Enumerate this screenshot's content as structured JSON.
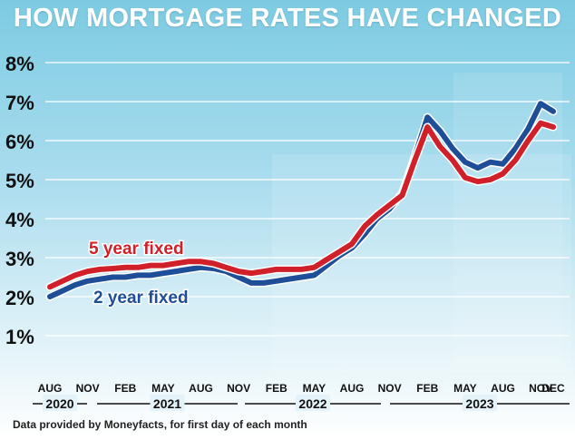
{
  "chart_data": {
    "type": "line",
    "title": "HOW MORTGAGE RATES HAVE CHANGED",
    "source_note": "Data provided by Moneyfacts, for first day of each month",
    "ylim": [
      0,
      8
    ],
    "y_ticks": [
      "1%",
      "2%",
      "3%",
      "4%",
      "5%",
      "6%",
      "7%",
      "8%"
    ],
    "y_tick_values": [
      1,
      2,
      3,
      4,
      5,
      6,
      7,
      8
    ],
    "x_tick_labels": [
      "AUG",
      "NOV",
      "FEB",
      "MAY",
      "AUG",
      "NOV",
      "FEB",
      "MAY",
      "AUG",
      "NOV",
      "FEB",
      "MAY",
      "AUG",
      "NOV",
      "DEC"
    ],
    "x_tick_dates": [
      "2020-08",
      "2020-11",
      "2021-02",
      "2021-05",
      "2021-08",
      "2021-11",
      "2022-02",
      "2022-05",
      "2022-08",
      "2022-11",
      "2023-02",
      "2023-05",
      "2023-08",
      "2023-11",
      "2023-12"
    ],
    "years": [
      {
        "label": "2020",
        "start": "2020-08",
        "end": "2020-12"
      },
      {
        "label": "2021",
        "start": "2021-01",
        "end": "2021-12"
      },
      {
        "label": "2022",
        "start": "2022-01",
        "end": "2022-12"
      },
      {
        "label": "2023",
        "start": "2023-01",
        "end": "2023-12"
      }
    ],
    "x": [
      "2020-08",
      "2020-09",
      "2020-10",
      "2020-11",
      "2020-12",
      "2021-01",
      "2021-02",
      "2021-03",
      "2021-04",
      "2021-05",
      "2021-06",
      "2021-07",
      "2021-08",
      "2021-09",
      "2021-10",
      "2021-11",
      "2021-12",
      "2022-01",
      "2022-02",
      "2022-03",
      "2022-04",
      "2022-05",
      "2022-06",
      "2022-07",
      "2022-08",
      "2022-09",
      "2022-10",
      "2022-11",
      "2022-12",
      "2023-01",
      "2023-02",
      "2023-03",
      "2023-04",
      "2023-05",
      "2023-06",
      "2023-07",
      "2023-08",
      "2023-09",
      "2023-10",
      "2023-11",
      "2023-12"
    ],
    "series": [
      {
        "name": "2 year fixed",
        "color": "#1f4e99",
        "values": [
          2.0,
          2.15,
          2.3,
          2.4,
          2.45,
          2.5,
          2.5,
          2.55,
          2.55,
          2.6,
          2.65,
          2.7,
          2.75,
          2.72,
          2.65,
          2.5,
          2.35,
          2.35,
          2.4,
          2.45,
          2.5,
          2.55,
          2.8,
          3.05,
          3.25,
          3.6,
          4.0,
          4.25,
          4.65,
          5.6,
          6.6,
          6.25,
          5.8,
          5.45,
          5.3,
          5.45,
          5.4,
          5.8,
          6.3,
          6.95,
          6.75
        ]
      },
      {
        "name": "5 year fixed",
        "color": "#d0202a",
        "values": [
          2.25,
          2.4,
          2.55,
          2.65,
          2.7,
          2.72,
          2.75,
          2.75,
          2.8,
          2.8,
          2.85,
          2.9,
          2.9,
          2.85,
          2.75,
          2.65,
          2.6,
          2.65,
          2.7,
          2.7,
          2.7,
          2.75,
          2.95,
          3.15,
          3.35,
          3.8,
          4.1,
          4.35,
          4.6,
          5.5,
          6.35,
          5.85,
          5.5,
          5.05,
          4.95,
          5.0,
          5.15,
          5.5,
          6.0,
          6.45,
          6.35
        ]
      }
    ],
    "series_labels": [
      {
        "text": "5 year fixed",
        "color": "#d0202a"
      },
      {
        "text": "2 year fixed",
        "color": "#1f4e99"
      }
    ],
    "grid": true
  }
}
